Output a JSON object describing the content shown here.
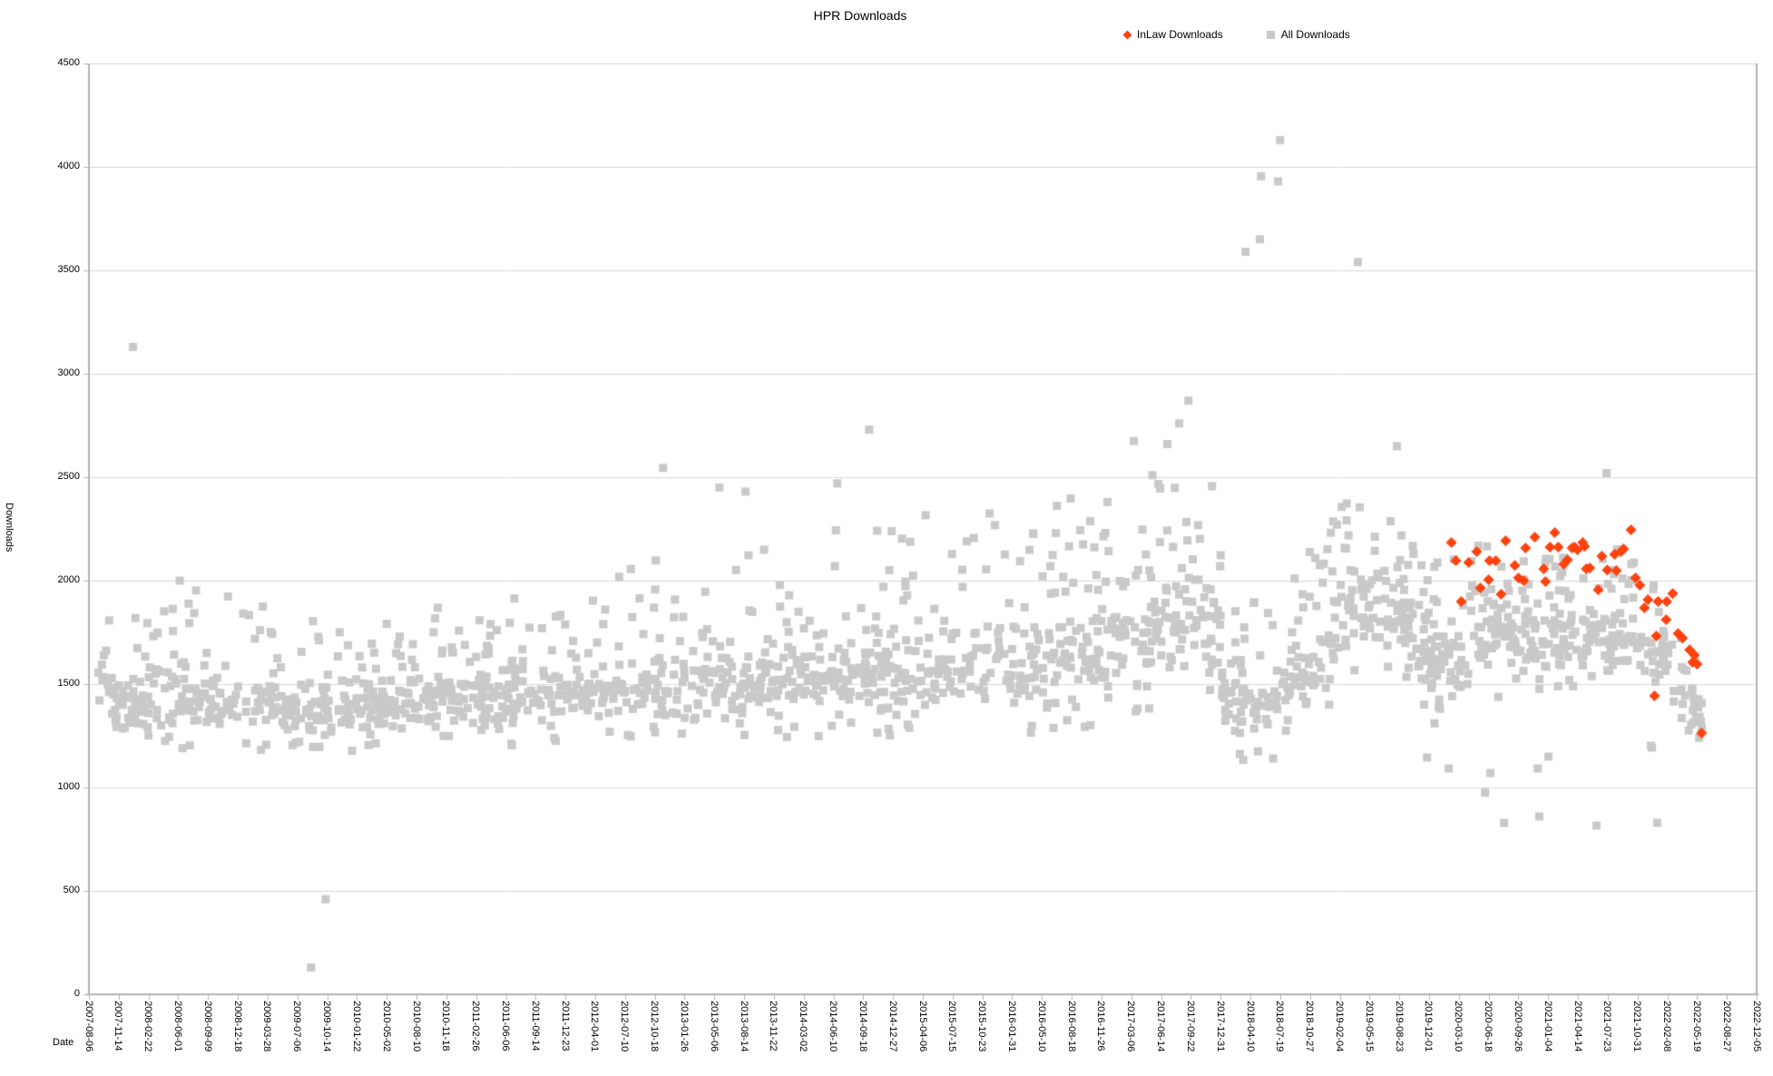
{
  "title": "HPR Downloads",
  "legend": [
    {
      "label": "InLaw Downloads",
      "marker": "diamond",
      "color": "#ff420e"
    },
    {
      "label": "All Downloads",
      "marker": "square",
      "color": "#c9c9c9"
    }
  ],
  "axes": {
    "x_label": "Date",
    "y_label": "Downloads",
    "y_min": 0,
    "y_max": 4500,
    "y_ticks": [
      0,
      500,
      1000,
      1500,
      2000,
      2500,
      3000,
      3500,
      4000,
      4500
    ],
    "x_start_date": "2007-08-06",
    "x_end_date": "2022-12-05",
    "x_tick_interval_days": 100,
    "x_tick_labels": [
      "2007-08-06",
      "2007-11-14",
      "2008-02-22",
      "2008-06-01",
      "2008-09-09",
      "2008-12-18",
      "2009-03-28",
      "2009-07-06",
      "2009-10-14",
      "2010-01-22",
      "2010-05-02",
      "2010-08-10",
      "2010-11-18",
      "2011-02-26",
      "2011-06-06",
      "2011-09-14",
      "2011-12-23",
      "2012-04-01",
      "2012-07-10",
      "2012-10-18",
      "2013-01-26",
      "2013-05-06",
      "2013-08-14",
      "2013-11-22",
      "2014-03-02",
      "2014-06-10",
      "2014-09-18",
      "2014-12-27",
      "2015-04-06",
      "2015-07-15",
      "2015-10-23",
      "2016-01-31",
      "2016-05-10",
      "2016-08-18",
      "2016-11-26",
      "2017-03-06",
      "2017-06-14",
      "2017-09-22",
      "2017-12-31",
      "2018-04-10",
      "2018-07-19",
      "2018-10-27",
      "2019-02-04",
      "2019-05-15",
      "2019-08-23",
      "2019-12-01",
      "2020-03-10",
      "2020-06-18",
      "2020-09-26",
      "2021-01-04",
      "2021-04-14",
      "2021-07-23",
      "2021-10-31",
      "2022-02-08",
      "2022-05-19",
      "2022-08-27",
      "2022-12-05"
    ]
  },
  "chart_data": {
    "type": "scatter",
    "title": "HPR Downloads",
    "xlabel": "Date",
    "ylabel": "Downloads",
    "ylim": [
      0,
      4500
    ],
    "grid": "horizontal",
    "legend_position": "top-right",
    "series": [
      {
        "name": "InLaw Downloads",
        "marker": "diamond",
        "color": "#ff420e",
        "points": [
          [
            "2020-02-14",
            2184
          ],
          [
            "2020-02-29",
            2096
          ],
          [
            "2020-03-18",
            1899
          ],
          [
            "2020-04-12",
            2088
          ],
          [
            "2020-05-09",
            2140
          ],
          [
            "2020-05-21",
            1965
          ],
          [
            "2020-06-18",
            2004
          ],
          [
            "2020-06-21",
            2096
          ],
          [
            "2020-07-12",
            2096
          ],
          [
            "2020-07-30",
            1934
          ],
          [
            "2020-08-14",
            2193
          ],
          [
            "2020-09-14",
            2074
          ],
          [
            "2020-09-26",
            2013
          ],
          [
            "2020-10-14",
            2000
          ],
          [
            "2020-10-20",
            2158
          ],
          [
            "2020-11-20",
            2210
          ],
          [
            "2020-12-20",
            2057
          ],
          [
            "2020-12-26",
            1996
          ],
          [
            "2021-01-10",
            2162
          ],
          [
            "2021-01-26",
            2232
          ],
          [
            "2021-02-07",
            2162
          ],
          [
            "2021-02-25",
            2079
          ],
          [
            "2021-03-10",
            2101
          ],
          [
            "2021-03-25",
            2158
          ],
          [
            "2021-04-02",
            2162
          ],
          [
            "2021-04-12",
            2149
          ],
          [
            "2021-04-30",
            2184
          ],
          [
            "2021-05-06",
            2166
          ],
          [
            "2021-05-12",
            2057
          ],
          [
            "2021-05-24",
            2061
          ],
          [
            "2021-06-21",
            1956
          ],
          [
            "2021-07-03",
            2118
          ],
          [
            "2021-07-21",
            2052
          ],
          [
            "2021-08-15",
            2127
          ],
          [
            "2021-08-21",
            2048
          ],
          [
            "2021-09-05",
            2140
          ],
          [
            "2021-09-14",
            2153
          ],
          [
            "2021-10-09",
            2246
          ],
          [
            "2021-10-24",
            2013
          ],
          [
            "2021-11-08",
            1978
          ],
          [
            "2021-11-23",
            1868
          ],
          [
            "2021-12-05",
            1908
          ],
          [
            "2021-12-27",
            1443
          ],
          [
            "2022-01-02",
            1732
          ],
          [
            "2022-01-08",
            1899
          ],
          [
            "2022-02-04",
            1811
          ],
          [
            "2022-02-06",
            1899
          ],
          [
            "2022-02-26",
            1938
          ],
          [
            "2022-03-16",
            1745
          ],
          [
            "2022-03-31",
            1723
          ],
          [
            "2022-04-24",
            1666
          ],
          [
            "2022-05-04",
            1605
          ],
          [
            "2022-05-10",
            1640
          ],
          [
            "2022-05-19",
            1596
          ],
          [
            "2022-06-03",
            1263
          ]
        ]
      },
      {
        "name": "All Downloads",
        "marker": "square",
        "color": "#c9c9c9",
        "summary": "Dense multi-per-week scatter 2007-09 to 2022-06; core band ~1250-1600 in early years, slowly rising to ~1500-2100 by 2017-2019, dipping sharply in early 2018, peaking 2019, then declining to ~1250 by mid-2022; plus isolated outliers.",
        "band_point_count": 1900,
        "band_keyframes": [
          [
            "2007-09-05",
            1260,
            1630,
            1850
          ],
          [
            "2008-09-09",
            1250,
            1560,
            2000
          ],
          [
            "2009-10-14",
            1240,
            1530,
            1810
          ],
          [
            "2010-11-18",
            1250,
            1570,
            1880
          ],
          [
            "2011-12-23",
            1280,
            1620,
            1950
          ],
          [
            "2013-01-26",
            1300,
            1680,
            2150
          ],
          [
            "2014-03-02",
            1310,
            1720,
            2250
          ],
          [
            "2015-04-06",
            1320,
            1780,
            2350
          ],
          [
            "2016-05-10",
            1330,
            1880,
            2420
          ],
          [
            "2017-03-06",
            1390,
            2000,
            2500
          ],
          [
            "2017-09-22",
            1450,
            2150,
            2550
          ],
          [
            "2017-12-20",
            1520,
            2300,
            2545
          ],
          [
            "2018-01-10",
            1200,
            1600,
            1900
          ],
          [
            "2018-07-19",
            1200,
            1650,
            1950
          ],
          [
            "2018-12-01",
            1350,
            1900,
            2250
          ],
          [
            "2019-03-10",
            1600,
            2150,
            2420
          ],
          [
            "2019-08-23",
            1550,
            2100,
            2330
          ],
          [
            "2020-01-01",
            1350,
            1850,
            2100
          ],
          [
            "2020-06-18",
            1500,
            1950,
            2230
          ],
          [
            "2021-04-14",
            1550,
            1950,
            2260
          ],
          [
            "2021-10-31",
            1500,
            1900,
            2150
          ],
          [
            "2022-03-01",
            1350,
            1750,
            1950
          ],
          [
            "2022-06-08",
            1230,
            1520,
            1700
          ]
        ],
        "outlier_points": [
          [
            "2008-01-01",
            3130
          ],
          [
            "2008-06-06",
            2000
          ],
          [
            "2009-08-21",
            130
          ],
          [
            "2009-10-09",
            460
          ],
          [
            "2012-11-15",
            2545
          ],
          [
            "2013-05-23",
            2450
          ],
          [
            "2013-08-19",
            2430
          ],
          [
            "2014-06-23",
            2470
          ],
          [
            "2014-10-08",
            2730
          ],
          [
            "2017-03-15",
            2675
          ],
          [
            "2017-07-05",
            2660
          ],
          [
            "2017-08-14",
            2760
          ],
          [
            "2017-09-14",
            2870
          ],
          [
            "2018-03-25",
            3590
          ],
          [
            "2018-05-12",
            3650
          ],
          [
            "2018-05-16",
            3955
          ],
          [
            "2018-07-12",
            3930
          ],
          [
            "2018-07-19",
            4130
          ],
          [
            "2019-04-06",
            3540
          ],
          [
            "2019-08-15",
            2650
          ],
          [
            "2019-11-24",
            1145
          ],
          [
            "2020-02-05",
            1092
          ],
          [
            "2020-06-06",
            975
          ],
          [
            "2020-06-24",
            1070
          ],
          [
            "2020-08-09",
            829
          ],
          [
            "2020-11-30",
            1092
          ],
          [
            "2020-12-05",
            860
          ],
          [
            "2021-01-05",
            1149
          ],
          [
            "2021-06-15",
            816
          ],
          [
            "2021-07-19",
            2520
          ],
          [
            "2021-12-15",
            1202
          ],
          [
            "2021-12-18",
            1193
          ],
          [
            "2022-01-05",
            829
          ],
          [
            "2022-05-26",
            1240
          ],
          [
            "2022-05-27",
            1342
          ]
        ]
      }
    ]
  }
}
